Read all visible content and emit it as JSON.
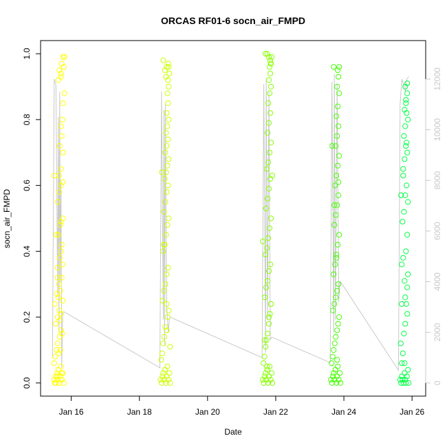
{
  "chart_data": {
    "type": "scatter",
    "title": "ORCAS RF01-6 socn_air_FMPD",
    "xlabel": "Date",
    "ylabel": "socn_air_FMPD",
    "x_ticks": [
      "Jan 16",
      "Jan 18",
      "Jan 20",
      "Jan 22",
      "Jan 24",
      "Jan 26"
    ],
    "x_tick_days": [
      16,
      18,
      20,
      22,
      24,
      26
    ],
    "xlim": [
      15.1,
      26.4
    ],
    "ylim": [
      -0.04,
      1.04
    ],
    "y_ticks": [
      "0.0",
      "0.2",
      "0.4",
      "0.6",
      "0.8",
      "1.0"
    ],
    "y2_ticks": [
      "0",
      "2000",
      "4000",
      "6000",
      "8000",
      "10000",
      "12000"
    ],
    "y2_lim": [
      -520,
      13520
    ],
    "grid": false,
    "legend": "none",
    "colors": {
      "flight_1": "#ffff00",
      "flight_2": "#ccff00",
      "flight_3": "#88ff00",
      "flight_4": "#44ff00",
      "flight_5": "#00ff44",
      "altitude_trace": "#c8c8c8"
    },
    "series": [
      {
        "x": [
          15.5,
          15.52,
          15.55,
          15.58,
          15.6,
          15.62,
          15.65,
          15.68,
          15.7,
          15.72,
          15.75,
          15.78,
          15.5,
          15.53,
          15.57,
          15.6,
          15.63,
          15.66,
          15.7,
          15.73,
          15.55,
          15.6,
          15.65,
          15.7,
          15.75,
          15.52,
          15.58,
          15.64,
          15.68,
          15.72,
          15.6,
          15.66,
          15.7,
          15.74,
          15.62,
          15.68,
          15.72,
          15.76,
          15.6,
          15.65,
          15.7,
          15.64,
          15.7,
          15.76,
          15.66,
          15.72,
          15.7,
          15.74,
          15.76,
          15.8,
          15.62,
          15.7,
          15.78,
          15.65,
          15.7,
          15.72,
          15.76,
          15.8,
          15.5,
          15.56,
          15.6,
          15.66,
          15.7,
          15.75,
          15.62,
          15.68,
          15.72,
          15.55,
          15.6
        ],
        "y": [
          0.01,
          0.0,
          0.02,
          0.03,
          0.01,
          0.04,
          0.0,
          0.02,
          0.05,
          0.01,
          0.03,
          0.0,
          0.06,
          0.08,
          0.1,
          0.12,
          0.09,
          0.14,
          0.16,
          0.15,
          0.18,
          0.2,
          0.22,
          0.21,
          0.25,
          0.24,
          0.27,
          0.3,
          0.28,
          0.32,
          0.35,
          0.38,
          0.4,
          0.36,
          0.45,
          0.48,
          0.42,
          0.5,
          0.55,
          0.58,
          0.6,
          0.63,
          0.65,
          0.7,
          0.72,
          0.75,
          0.78,
          0.8,
          0.85,
          0.88,
          0.92,
          0.94,
          0.96,
          0.95,
          0.93,
          0.97,
          0.99,
          0.99,
          0.63,
          0.45,
          0.32,
          0.19,
          0.49,
          0.61,
          0.26,
          0.1,
          0.03,
          0.0,
          0.02
        ]
      },
      {
        "x": [
          18.62,
          18.65,
          18.68,
          18.7,
          18.72,
          18.75,
          18.78,
          18.8,
          18.82,
          18.85,
          18.88,
          18.9,
          18.64,
          18.67,
          18.7,
          18.73,
          18.76,
          18.8,
          18.83,
          18.86,
          18.68,
          18.72,
          18.76,
          18.8,
          18.84,
          18.7,
          18.74,
          18.78,
          18.82,
          18.86,
          18.72,
          18.76,
          18.8,
          18.84,
          18.74,
          18.78,
          18.82,
          18.86,
          18.76,
          18.8,
          18.84,
          18.78,
          18.82,
          18.86,
          18.8,
          18.84,
          18.82,
          18.86,
          18.84,
          18.88,
          18.75,
          18.8,
          18.85,
          18.7,
          18.78,
          18.86,
          18.66,
          18.72,
          18.8,
          18.9
        ],
        "y": [
          0.01,
          0.0,
          0.02,
          0.03,
          0.01,
          0.04,
          0.0,
          0.02,
          0.05,
          0.01,
          0.03,
          0.0,
          0.07,
          0.09,
          0.12,
          0.14,
          0.17,
          0.16,
          0.2,
          0.22,
          0.25,
          0.28,
          0.3,
          0.33,
          0.35,
          0.4,
          0.42,
          0.45,
          0.48,
          0.5,
          0.52,
          0.55,
          0.58,
          0.6,
          0.62,
          0.64,
          0.66,
          0.68,
          0.7,
          0.72,
          0.74,
          0.76,
          0.78,
          0.8,
          0.82,
          0.85,
          0.88,
          0.9,
          0.92,
          0.94,
          0.95,
          0.96,
          0.97,
          0.98,
          0.93,
          0.96,
          0.64,
          0.42,
          0.24,
          0.11
        ]
      },
      {
        "x": [
          21.62,
          21.65,
          21.68,
          21.7,
          21.72,
          21.75,
          21.78,
          21.8,
          21.82,
          21.85,
          21.88,
          21.9,
          21.64,
          21.67,
          21.7,
          21.73,
          21.76,
          21.8,
          21.83,
          21.86,
          21.68,
          21.72,
          21.76,
          21.8,
          21.84,
          21.7,
          21.74,
          21.78,
          21.82,
          21.86,
          21.72,
          21.76,
          21.8,
          21.84,
          21.74,
          21.78,
          21.82,
          21.86,
          21.76,
          21.8,
          21.84,
          21.78,
          21.82,
          21.86,
          21.8,
          21.84,
          21.82,
          21.86,
          21.84,
          21.88,
          21.7,
          21.75,
          21.8,
          21.85,
          21.62,
          21.68,
          21.74,
          21.8,
          21.86,
          21.9
        ],
        "y": [
          0.01,
          0.0,
          0.02,
          0.03,
          0.01,
          0.04,
          0.0,
          0.02,
          0.05,
          0.01,
          0.03,
          0.0,
          0.06,
          0.08,
          0.11,
          0.13,
          0.15,
          0.18,
          0.21,
          0.24,
          0.26,
          0.29,
          0.31,
          0.34,
          0.36,
          0.39,
          0.41,
          0.44,
          0.47,
          0.5,
          0.53,
          0.56,
          0.59,
          0.62,
          0.65,
          0.67,
          0.7,
          0.73,
          0.76,
          0.79,
          0.82,
          0.85,
          0.88,
          0.9,
          0.92,
          0.94,
          0.96,
          0.97,
          0.98,
          0.99,
          1.0,
          1.0,
          0.99,
          0.97,
          0.43,
          0.13,
          0.05,
          0.2,
          0.24,
          0.63
        ]
      },
      {
        "x": [
          23.62,
          23.65,
          23.68,
          23.7,
          23.72,
          23.75,
          23.78,
          23.8,
          23.82,
          23.85,
          23.88,
          23.9,
          23.64,
          23.67,
          23.7,
          23.73,
          23.76,
          23.8,
          23.83,
          23.86,
          23.68,
          23.72,
          23.76,
          23.8,
          23.84,
          23.7,
          23.74,
          23.78,
          23.82,
          23.86,
          23.72,
          23.76,
          23.8,
          23.84,
          23.74,
          23.78,
          23.82,
          23.86,
          23.76,
          23.8,
          23.84,
          23.78,
          23.82,
          23.86,
          23.8,
          23.84,
          23.82,
          23.86,
          23.66,
          23.72,
          23.78,
          23.84,
          23.7,
          23.8
        ],
        "y": [
          0.01,
          0.0,
          0.02,
          0.03,
          0.01,
          0.04,
          0.0,
          0.02,
          0.05,
          0.01,
          0.03,
          0.0,
          0.06,
          0.08,
          0.1,
          0.12,
          0.14,
          0.16,
          0.18,
          0.2,
          0.22,
          0.24,
          0.26,
          0.28,
          0.3,
          0.33,
          0.36,
          0.39,
          0.42,
          0.45,
          0.48,
          0.51,
          0.54,
          0.57,
          0.6,
          0.63,
          0.66,
          0.69,
          0.72,
          0.75,
          0.78,
          0.81,
          0.84,
          0.88,
          0.9,
          0.93,
          0.95,
          0.96,
          0.72,
          0.54,
          0.38,
          0.61,
          0.96,
          0.07
        ]
      },
      {
        "x": [
          25.65,
          25.68,
          25.7,
          25.72,
          25.75,
          25.78,
          25.8,
          25.82,
          25.85,
          25.88,
          25.9,
          25.67,
          25.7,
          25.73,
          25.76,
          25.8,
          25.83,
          25.86,
          25.88,
          25.7,
          25.74,
          25.78,
          25.82,
          25.86,
          25.72,
          25.76,
          25.8,
          25.84,
          25.88,
          25.74,
          25.78,
          25.82,
          25.86,
          25.76,
          25.8,
          25.84,
          25.88,
          25.78,
          25.82,
          25.86,
          25.8,
          25.84,
          25.82,
          25.86,
          25.7,
          25.78,
          25.86,
          25.68,
          25.74,
          25.8
        ],
        "y": [
          0.01,
          0.0,
          0.02,
          0.01,
          0.0,
          0.03,
          0.01,
          0.0,
          0.02,
          0.04,
          0.0,
          0.12,
          0.06,
          0.09,
          0.15,
          0.18,
          0.24,
          0.29,
          0.33,
          0.36,
          0.38,
          0.31,
          0.4,
          0.45,
          0.49,
          0.52,
          0.57,
          0.6,
          0.55,
          0.65,
          0.68,
          0.72,
          0.7,
          0.75,
          0.78,
          0.73,
          0.8,
          0.83,
          0.86,
          0.88,
          0.9,
          0.82,
          0.85,
          0.91,
          0.24,
          0.06,
          0.21,
          0.57,
          0.63,
          0.26
        ]
      }
    ],
    "altitude_trace": {
      "x": [
        15.45,
        15.5,
        15.55,
        15.6,
        15.62,
        15.64,
        15.66,
        15.68,
        15.7,
        15.72,
        15.75,
        15.8,
        18.6,
        18.65,
        18.7,
        18.72,
        18.74,
        18.76,
        18.8,
        18.85,
        18.88,
        18.9,
        21.6,
        21.65,
        21.7,
        21.72,
        21.76,
        21.8,
        21.84,
        21.88,
        21.9,
        23.6,
        23.65,
        23.7,
        23.72,
        23.75,
        23.8,
        23.85,
        23.88,
        23.9,
        25.6,
        25.65,
        25.7,
        25.75,
        25.8,
        25.85,
        25.9
      ],
      "y": [
        1000,
        12000,
        11800,
        3500,
        10500,
        2000,
        11500,
        4000,
        8000,
        600,
        2800,
        2800,
        600,
        11500,
        2500,
        10800,
        1500,
        11000,
        3000,
        2000,
        2500,
        2600,
        1000,
        11800,
        1200,
        12000,
        2500,
        11500,
        1700,
        1800,
        1800,
        800,
        11900,
        2000,
        12200,
        2500,
        11800,
        3200,
        4000,
        4000,
        500,
        11000,
        12000,
        11800,
        11500,
        12000,
        12100
      ]
    }
  }
}
